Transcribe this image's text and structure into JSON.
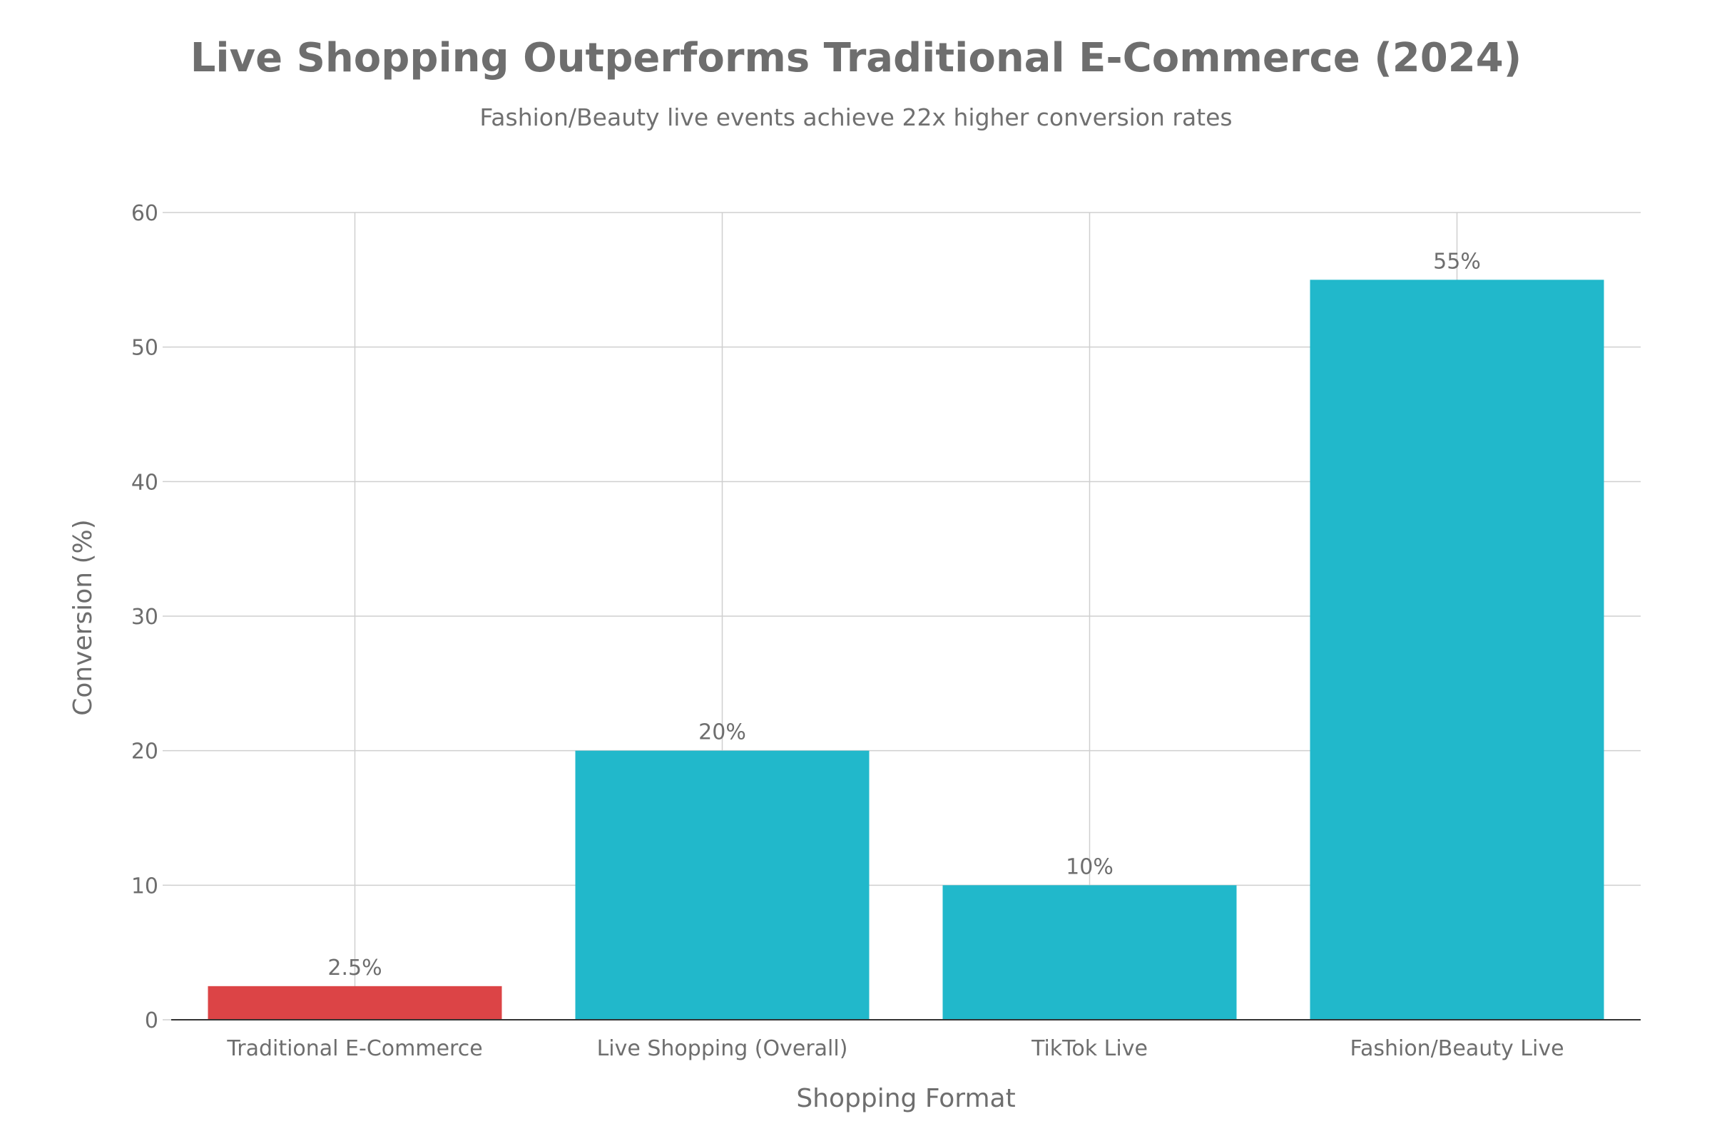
{
  "chart_data": {
    "type": "bar",
    "title": "Live Shopping Outperforms Traditional E-Commerce (2024)",
    "subtitle": "Fashion/Beauty live events achieve 22x higher conversion rates",
    "xlabel": "Shopping Format",
    "ylabel": "Conversion (%)",
    "categories": [
      "Traditional E-Commerce",
      "Live Shopping (Overall)",
      "TikTok Live",
      "Fashion/Beauty Live"
    ],
    "values": [
      2.5,
      20,
      10,
      55
    ],
    "data_labels": [
      "2.5%",
      "20%",
      "10%",
      "55%"
    ],
    "bar_colors": [
      "#dc4446",
      "#21b8cb",
      "#21b8cb",
      "#21b8cb"
    ],
    "ylim": [
      0,
      60
    ],
    "yticks": [
      0,
      10,
      20,
      30,
      40,
      50,
      60
    ],
    "grid": true,
    "legend": "none"
  }
}
